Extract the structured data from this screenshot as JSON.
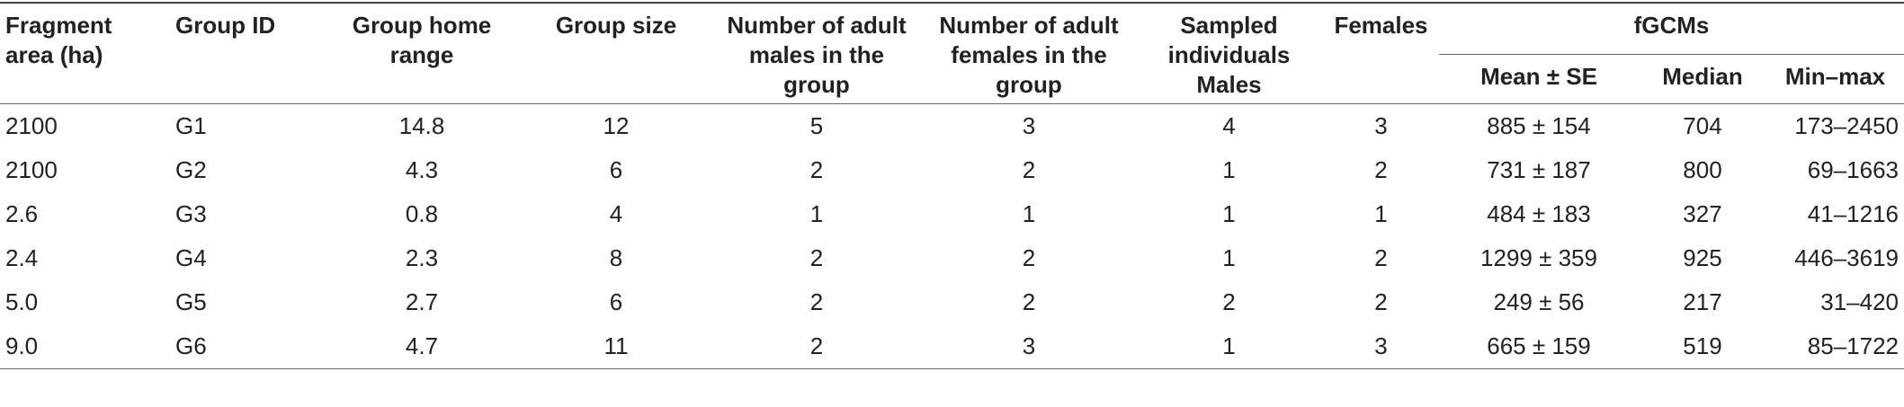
{
  "table": {
    "header": [
      "Fragment area (ha)",
      "Group ID",
      "Group home range",
      "Group size",
      "Number of adult males in the group",
      "Number of adult females in the group",
      "Sampled individuals Males",
      "Females",
      "fGCMs"
    ],
    "subheader": [
      "Mean ± SE",
      "Median",
      "Min–max"
    ],
    "rows": [
      [
        "2100",
        "G1",
        "14.8",
        "12",
        "5",
        "3",
        "4",
        "3",
        "885 ± 154",
        "704",
        "173–2450"
      ],
      [
        "2100",
        "G2",
        "4.3",
        "6",
        "2",
        "2",
        "1",
        "2",
        "731 ± 187",
        "800",
        "69–1663"
      ],
      [
        "2.6",
        "G3",
        "0.8",
        "4",
        "1",
        "1",
        "1",
        "1",
        "484 ± 183",
        "327",
        "41–1216"
      ],
      [
        "2.4",
        "G4",
        "2.3",
        "8",
        "2",
        "2",
        "1",
        "2",
        "1299 ± 359",
        "925",
        "446–3619"
      ],
      [
        "5.0",
        "G5",
        "2.7",
        "6",
        "2",
        "2",
        "2",
        "2",
        "249 ± 56",
        "217",
        "31–420"
      ],
      [
        "9.0",
        "G6",
        "4.7",
        "11",
        "2",
        "3",
        "1",
        "3",
        "665 ± 159",
        "519",
        "85–1722"
      ]
    ]
  }
}
